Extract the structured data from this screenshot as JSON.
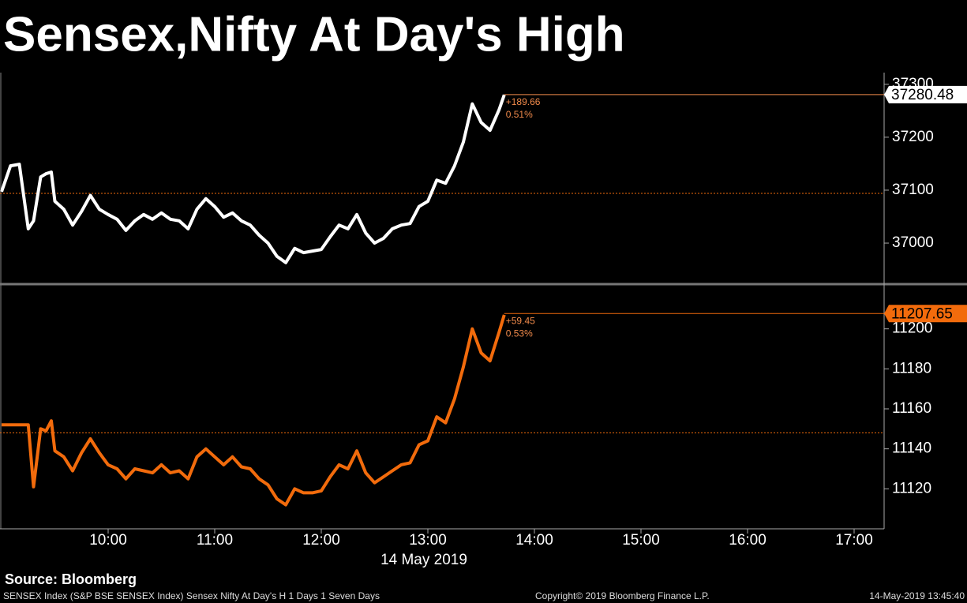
{
  "chart_data": {
    "type": "line",
    "title": "Sensex,Nifty At Day's High",
    "xlabel": "14 May 2019",
    "x": [
      "09:00",
      "09:05",
      "09:10",
      "09:15",
      "09:18",
      "09:22",
      "09:25",
      "09:28",
      "09:30",
      "09:35",
      "09:40",
      "09:45",
      "09:50",
      "09:55",
      "10:00",
      "10:05",
      "10:10",
      "10:15",
      "10:20",
      "10:25",
      "10:30",
      "10:35",
      "10:40",
      "10:45",
      "10:50",
      "10:55",
      "11:00",
      "11:05",
      "11:10",
      "11:15",
      "11:20",
      "11:25",
      "11:30",
      "11:35",
      "11:40",
      "11:45",
      "11:50",
      "11:55",
      "12:00",
      "12:05",
      "12:10",
      "12:15",
      "12:20",
      "12:25",
      "12:30",
      "12:35",
      "12:40",
      "12:45",
      "12:50",
      "12:55",
      "13:00",
      "13:05",
      "13:10",
      "13:15",
      "13:20",
      "13:25",
      "13:30",
      "13:35",
      "13:40",
      "13:43"
    ],
    "xlim": [
      "09:00",
      "17:16"
    ],
    "xticks": [
      "10:00",
      "11:00",
      "12:00",
      "13:00",
      "14:00",
      "15:00",
      "16:00",
      "17:00"
    ],
    "panels": [
      {
        "series": [
          {
            "color": "#ffffff",
            "values": [
              37097,
              37146,
              37149,
              37027,
              37042,
              37125,
              37131,
              37134,
              37079,
              37064,
              37034,
              37060,
              37090,
              37064,
              37054,
              37045,
              37024,
              37042,
              37054,
              37045,
              37057,
              37045,
              37042,
              37027,
              37064,
              37084,
              37069,
              37049,
              37057,
              37042,
              37034,
              37015,
              37000,
              36975,
              36963,
              36990,
              36982,
              36985,
              36988,
              37012,
              37034,
              37027,
              37054,
              37019,
              37000,
              37009,
              37027,
              37034,
              37037,
              37069,
              37079,
              37119,
              37113,
              37146,
              37191,
              37263,
              37228,
              37213,
              37251,
              37280
            ]
          }
        ],
        "ylim": [
          36927,
          37322
        ],
        "yticks": [
          37000,
          37100,
          37200,
          37300
        ],
        "reference_line": 37094,
        "last_value": 37280.48,
        "change": "+189.66",
        "change_pct": "0.51%",
        "box_color": "#ffffff",
        "line_color": "#f08a4b"
      },
      {
        "series": [
          {
            "color": "#f26b0c",
            "values": [
              11152,
              11152,
              11152,
              11152,
              11121,
              11150,
              11149,
              11154,
              11139,
              11136,
              11129,
              11138,
              11145,
              11138,
              11132,
              11130,
              11125,
              11130,
              11129,
              11128,
              11132,
              11128,
              11129,
              11125,
              11136,
              11140,
              11136,
              11132,
              11136,
              11131,
              11130,
              11125,
              11122,
              11115,
              11112,
              11120,
              11118,
              11118,
              11119,
              11126,
              11132,
              11130,
              11139,
              11128,
              11123,
              11126,
              11129,
              11132,
              11133,
              11142,
              11144,
              11156,
              11153,
              11165,
              11181,
              11200,
              11188,
              11184,
              11198,
              11207
            ]
          }
        ],
        "ylim": [
          11100,
          11220
        ],
        "yticks": [
          11120,
          11140,
          11160,
          11180,
          11200
        ],
        "reference_line": 11148,
        "last_value": 11207.65,
        "change": "+59.45",
        "change_pct": "0.53%",
        "box_color": "#f26b0c",
        "line_color": "#f26b0c"
      }
    ]
  },
  "source": "Source: Bloomberg",
  "footer": {
    "left": "SENSEX Index (S&P BSE SENSEX Index) Sensex Nifty At Day's H 1 Days 1 Seven Days",
    "center": "Copyright© 2019 Bloomberg Finance L.P.",
    "right": "14-May-2019 13:45:40"
  }
}
